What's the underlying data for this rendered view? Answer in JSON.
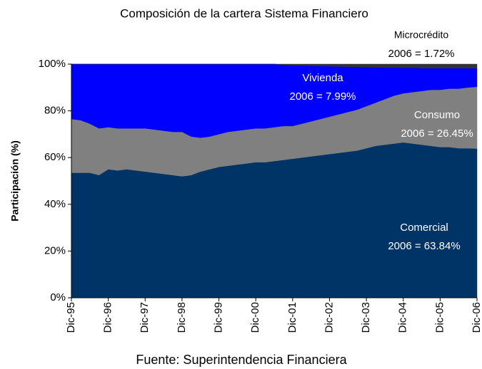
{
  "chart_data": {
    "type": "stacked_area",
    "title": "Composición de la cartera Sistema Financiero",
    "y_label": "Participación (%)",
    "source": "Fuente: Superintendencia Financiera",
    "categories": [
      "Dic-95",
      null,
      null,
      null,
      "Dic-96",
      null,
      null,
      null,
      "Dic-97",
      null,
      null,
      null,
      "Dic-98",
      null,
      null,
      null,
      "Dic-99",
      null,
      null,
      null,
      "Dic-00",
      null,
      null,
      null,
      "Dic-01",
      null,
      null,
      null,
      "Dic-02",
      null,
      null,
      null,
      "Dic-03",
      null,
      null,
      null,
      "Dic-04",
      null,
      null,
      null,
      "Dic-05",
      null,
      null,
      null,
      "Dic-06"
    ],
    "series": [
      {
        "name": "Comercial",
        "color": "#003366",
        "values": [
          53.5,
          53.5,
          53.5,
          52.5,
          55,
          54.5,
          55,
          54.5,
          54,
          53.5,
          53,
          52.5,
          52,
          52.5,
          54,
          55,
          56,
          56.5,
          57,
          57.5,
          58,
          58,
          58.5,
          59,
          59.5,
          60,
          60.5,
          61,
          61.5,
          62,
          62.5,
          63,
          64,
          65,
          65.5,
          66,
          66.5,
          66,
          65.5,
          65,
          64.5,
          64.5,
          64,
          64,
          63.84
        ]
      },
      {
        "name": "Consumo",
        "color": "#808080",
        "values": [
          23,
          22.5,
          21,
          20,
          18,
          18,
          17.5,
          18,
          18.5,
          18.5,
          18.5,
          18.5,
          19,
          16.5,
          14.5,
          14,
          14,
          14.5,
          14.5,
          14.5,
          14.5,
          14.5,
          14.5,
          14.5,
          14,
          14.5,
          15,
          15.5,
          16,
          16.5,
          17,
          17.5,
          18,
          18.5,
          19.5,
          20.5,
          21,
          22,
          23,
          24,
          24.5,
          25,
          25.5,
          26,
          26.45
        ]
      },
      {
        "name": "Vivienda",
        "color": "#0000ff",
        "values": [
          23.5,
          24,
          25.5,
          27.5,
          27,
          27.5,
          27.5,
          27.5,
          27.5,
          28,
          28.5,
          29,
          29,
          31,
          31.5,
          31,
          30,
          29,
          28.5,
          28,
          27.5,
          27.5,
          27,
          26.2,
          26,
          24.9,
          23.8,
          22.7,
          21.6,
          20.5,
          19.4,
          18.3,
          16.7,
          15.1,
          13.5,
          12,
          10.9,
          10.4,
          9.8,
          9.3,
          9.3,
          8.8,
          8.8,
          8.28,
          7.99
        ]
      },
      {
        "name": "Microcrédito",
        "color": "#333333",
        "values": [
          0,
          0,
          0,
          0,
          0,
          0,
          0,
          0,
          0,
          0,
          0,
          0,
          0,
          0,
          0,
          0,
          0,
          0,
          0,
          0,
          0,
          0,
          0,
          0.3,
          0.5,
          0.6,
          0.7,
          0.8,
          0.9,
          1,
          1.1,
          1.2,
          1.3,
          1.4,
          1.5,
          1.5,
          1.6,
          1.6,
          1.7,
          1.7,
          1.7,
          1.7,
          1.7,
          1.72,
          1.72
        ]
      }
    ],
    "annotations": [
      "2006 = 63.84%",
      "2006 = 26.45%",
      "2006 = 7.99%",
      "2006 = 1.72%"
    ],
    "ylim": [
      0,
      100
    ],
    "yticks": [
      {
        "value": 0,
        "label": "0%"
      },
      {
        "value": 20,
        "label": "20%"
      },
      {
        "value": 40,
        "label": "40%"
      },
      {
        "value": 60,
        "label": "60%"
      },
      {
        "value": 80,
        "label": "80%"
      },
      {
        "value": 100,
        "label": "100%"
      }
    ]
  }
}
